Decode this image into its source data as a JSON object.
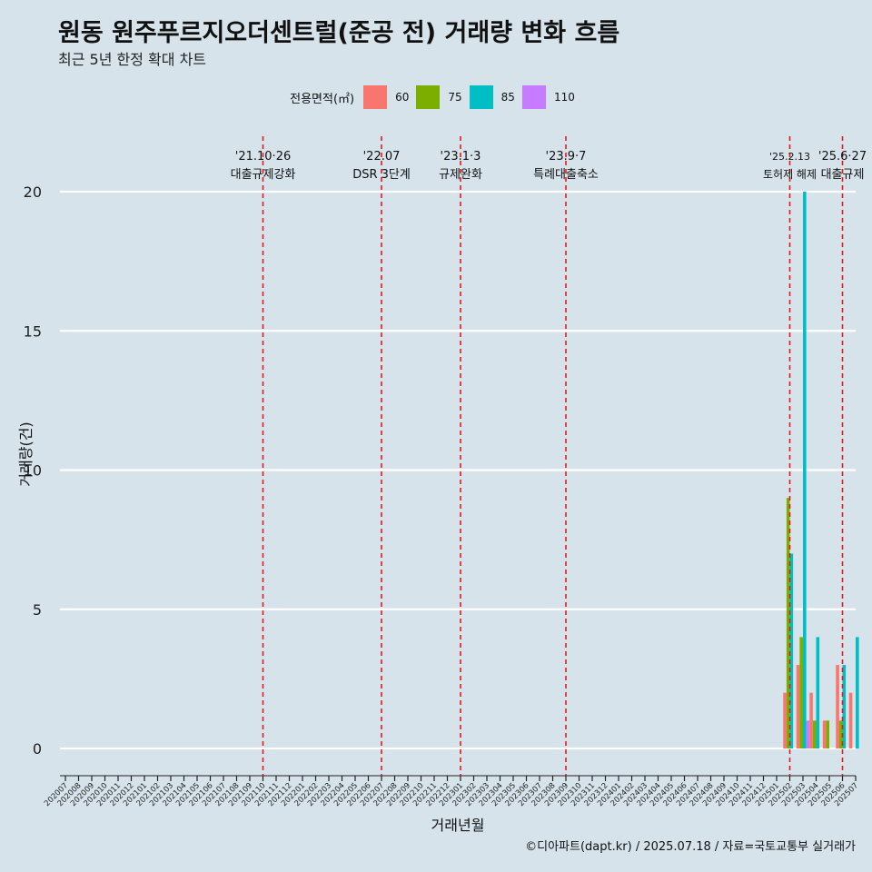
{
  "title": "원동 원주푸르지오더센트럴(준공 전) 거래량 변화 흐름",
  "subtitle": "최근 5년 한정 확대 차트",
  "caption": "©디아파트(dapt.kr) / 2025.07.18 / 자료=국토교통부 실거래가",
  "legend": {
    "title": "전용면적(㎡)",
    "items": [
      {
        "label": "60",
        "color": "#f8766d"
      },
      {
        "label": "75",
        "color": "#7cae00"
      },
      {
        "label": "85",
        "color": "#00bfc4"
      },
      {
        "label": "110",
        "color": "#c77cff"
      }
    ]
  },
  "chart_data": {
    "type": "bar",
    "xlabel": "거래년월",
    "ylabel": "거래량(건)",
    "ylim": [
      0,
      21
    ],
    "yticks": [
      0,
      5,
      10,
      15,
      20
    ],
    "categories": [
      "202007",
      "202008",
      "202009",
      "202010",
      "202011",
      "202012",
      "202101",
      "202102",
      "202103",
      "202104",
      "202105",
      "202106",
      "202107",
      "202108",
      "202109",
      "202110",
      "202111",
      "202112",
      "202201",
      "202202",
      "202203",
      "202204",
      "202205",
      "202206",
      "202207",
      "202208",
      "202209",
      "202210",
      "202211",
      "202212",
      "202301",
      "202302",
      "202303",
      "202304",
      "202305",
      "202306",
      "202307",
      "202308",
      "202309",
      "202310",
      "202311",
      "202312",
      "202401",
      "202402",
      "202403",
      "202404",
      "202405",
      "202406",
      "202407",
      "202408",
      "202409",
      "202410",
      "202411",
      "202412",
      "202501",
      "202502",
      "202503",
      "202504",
      "202505",
      "202506",
      "202507"
    ],
    "series": [
      {
        "name": "60",
        "color": "#f8766d",
        "values": {
          "202502": 2,
          "202503": 3,
          "202504": 2,
          "202505": 1,
          "202506": 3,
          "202507": 2
        }
      },
      {
        "name": "75",
        "color": "#7cae00",
        "values": {
          "202502": 9,
          "202503": 4,
          "202504": 1,
          "202505": 1,
          "202506": 1
        }
      },
      {
        "name": "85",
        "color": "#00bfc4",
        "values": {
          "202502": 7,
          "202503": 20,
          "202504": 4,
          "202506": 3,
          "202507": 4
        }
      },
      {
        "name": "110",
        "color": "#c77cff",
        "values": {
          "202503": 1
        }
      }
    ],
    "events": [
      {
        "category": "202110",
        "date": "'21.10·26",
        "label": "대출규제강화"
      },
      {
        "category": "202207",
        "date": "'22.07",
        "label": "DSR 3단계"
      },
      {
        "category": "202301",
        "date": "'23.1·3",
        "label": "규제완화"
      },
      {
        "category": "202309",
        "date": "'23.9·7",
        "label": "특례대출축소"
      },
      {
        "category": "202502",
        "date": "'25.2.13",
        "label": "토허제 해제"
      },
      {
        "category": "202506",
        "date": "'25.6·27",
        "label": "대출규제"
      }
    ]
  }
}
